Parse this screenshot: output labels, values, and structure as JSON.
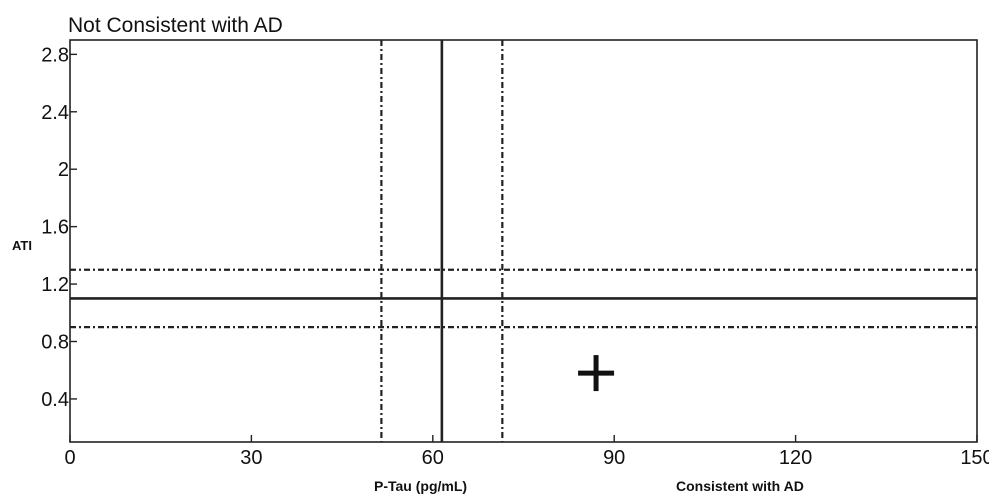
{
  "chart_data": {
    "type": "scatter",
    "title": "",
    "corner_text_top": "Not Consistent with AD",
    "corner_text_bottom_right": "Consistent with AD",
    "xlabel": "P-Tau (pg/mL)",
    "ylabel": "ATI",
    "xlim": [
      0,
      150
    ],
    "ylim": [
      0.1,
      2.9
    ],
    "x_ticks": [
      0,
      30,
      60,
      90,
      120,
      150
    ],
    "x_tick_labels": [
      "0",
      "30",
      "60",
      "90",
      "120",
      "150"
    ],
    "y_ticks": [
      0.4,
      0.8,
      1.2,
      1.6,
      2,
      2.4,
      2.8
    ],
    "y_tick_labels": [
      "0.4",
      "0.8",
      "1.2",
      "1.6",
      "2",
      "2.4",
      "2.8"
    ],
    "grid": false,
    "reference_lines": {
      "vertical_solid": 61.5,
      "vertical_dashed": [
        51.5,
        71.5
      ],
      "horizontal_solid": 1.1,
      "horizontal_dashed": [
        0.9,
        1.3
      ]
    },
    "points": [
      {
        "x": 87,
        "y": 0.58,
        "marker": "plus"
      }
    ]
  }
}
